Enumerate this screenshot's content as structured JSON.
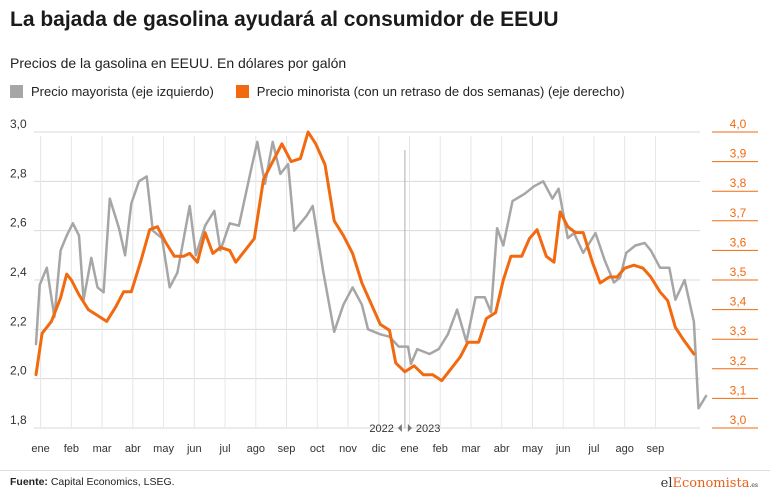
{
  "header": {
    "title": "La bajada de gasolina ayudará al consumidor de EEUU",
    "subtitle": "Precios de la gasolina en EEUU. En dólares por galón"
  },
  "legend": {
    "wholesale": "Precio mayorista (eje izquierdo)",
    "retail": "Precio minorista (con un retraso de dos semanas) (eje derecho)"
  },
  "colors": {
    "wholesale": "#a6a6a6",
    "retail": "#f26a10",
    "grid": "#d9d9d9"
  },
  "footer": {
    "source_label": "Fuente:",
    "source_text": "Capital Economics, LSEG.",
    "logo_pre": "el",
    "logo_hl": "Economista",
    "logo_tld": ".es"
  },
  "chart_data": {
    "type": "line",
    "x_unit": "months since start of 2022",
    "xlim": [
      0,
      21.6
    ],
    "x_ticks": [
      {
        "x": 0.15,
        "label": "ene"
      },
      {
        "x": 1.15,
        "label": "feb"
      },
      {
        "x": 2.15,
        "label": "mar"
      },
      {
        "x": 3.15,
        "label": "abr"
      },
      {
        "x": 4.15,
        "label": "may"
      },
      {
        "x": 5.15,
        "label": "jun"
      },
      {
        "x": 6.15,
        "label": "jul"
      },
      {
        "x": 7.15,
        "label": "ago"
      },
      {
        "x": 8.15,
        "label": "sep"
      },
      {
        "x": 9.15,
        "label": "oct"
      },
      {
        "x": 10.15,
        "label": "nov"
      },
      {
        "x": 11.15,
        "label": "dic"
      },
      {
        "x": 12.15,
        "label": "ene"
      },
      {
        "x": 13.15,
        "label": "feb"
      },
      {
        "x": 14.15,
        "label": "mar"
      },
      {
        "x": 15.15,
        "label": "abr"
      },
      {
        "x": 16.15,
        "label": "may"
      },
      {
        "x": 17.15,
        "label": "jun"
      },
      {
        "x": 18.15,
        "label": "jul"
      },
      {
        "x": 19.15,
        "label": "ago"
      },
      {
        "x": 20.15,
        "label": "sep"
      }
    ],
    "year_divider": {
      "x": 12.0,
      "left_label": "2022",
      "right_label": "2023"
    },
    "y_left": {
      "min": 1.8,
      "max": 3.0,
      "ticks": [
        "1,8",
        "2,0",
        "2,2",
        "2,4",
        "2,6",
        "2,8",
        "3,0"
      ]
    },
    "y_right": {
      "min": 3.0,
      "max": 4.0,
      "ticks": [
        "3,0",
        "3,1",
        "3,2",
        "3,3",
        "3,4",
        "3,5",
        "3,6",
        "3,7",
        "3,8",
        "3,9",
        "4,0"
      ]
    },
    "grid": true,
    "series": [
      {
        "name": "Precio mayorista (eje izquierdo)",
        "axis": "left",
        "points": [
          [
            0.0,
            2.14
          ],
          [
            0.12,
            2.38
          ],
          [
            0.35,
            2.45
          ],
          [
            0.6,
            2.25
          ],
          [
            0.8,
            2.52
          ],
          [
            1.0,
            2.58
          ],
          [
            1.2,
            2.63
          ],
          [
            1.4,
            2.58
          ],
          [
            1.55,
            2.32
          ],
          [
            1.8,
            2.49
          ],
          [
            2.0,
            2.37
          ],
          [
            2.2,
            2.35
          ],
          [
            2.4,
            2.73
          ],
          [
            2.7,
            2.61
          ],
          [
            2.9,
            2.5
          ],
          [
            3.1,
            2.71
          ],
          [
            3.35,
            2.8
          ],
          [
            3.6,
            2.82
          ],
          [
            3.8,
            2.6
          ],
          [
            4.1,
            2.57
          ],
          [
            4.35,
            2.37
          ],
          [
            4.6,
            2.43
          ],
          [
            5.0,
            2.7
          ],
          [
            5.2,
            2.5
          ],
          [
            5.5,
            2.62
          ],
          [
            5.8,
            2.68
          ],
          [
            6.0,
            2.52
          ],
          [
            6.3,
            2.63
          ],
          [
            6.6,
            2.62
          ],
          [
            7.0,
            2.85
          ],
          [
            7.2,
            2.96
          ],
          [
            7.45,
            2.79
          ],
          [
            7.7,
            2.96
          ],
          [
            7.95,
            2.83
          ],
          [
            8.2,
            2.87
          ],
          [
            8.4,
            2.6
          ],
          [
            8.8,
            2.66
          ],
          [
            9.0,
            2.7
          ],
          [
            9.35,
            2.43
          ],
          [
            9.7,
            2.19
          ],
          [
            10.0,
            2.3
          ],
          [
            10.3,
            2.37
          ],
          [
            10.6,
            2.3
          ],
          [
            10.8,
            2.2
          ],
          [
            11.2,
            2.18
          ],
          [
            11.5,
            2.17
          ],
          [
            11.8,
            2.13
          ],
          [
            12.1,
            2.13
          ],
          [
            12.2,
            2.06
          ],
          [
            12.4,
            2.12
          ],
          [
            12.8,
            2.1
          ],
          [
            13.1,
            2.12
          ],
          [
            13.4,
            2.18
          ],
          [
            13.7,
            2.28
          ],
          [
            14.0,
            2.15
          ],
          [
            14.3,
            2.33
          ],
          [
            14.6,
            2.33
          ],
          [
            14.8,
            2.27
          ],
          [
            15.0,
            2.61
          ],
          [
            15.2,
            2.54
          ],
          [
            15.5,
            2.72
          ],
          [
            15.9,
            2.75
          ],
          [
            16.2,
            2.78
          ],
          [
            16.5,
            2.8
          ],
          [
            16.8,
            2.73
          ],
          [
            17.0,
            2.77
          ],
          [
            17.3,
            2.57
          ],
          [
            17.5,
            2.59
          ],
          [
            17.8,
            2.51
          ],
          [
            18.2,
            2.59
          ],
          [
            18.5,
            2.48
          ],
          [
            18.8,
            2.39
          ],
          [
            19.0,
            2.41
          ],
          [
            19.2,
            2.51
          ],
          [
            19.5,
            2.54
          ],
          [
            19.8,
            2.55
          ],
          [
            20.0,
            2.52
          ],
          [
            20.3,
            2.45
          ],
          [
            20.6,
            2.45
          ],
          [
            20.8,
            2.32
          ],
          [
            21.1,
            2.4
          ],
          [
            21.4,
            2.23
          ],
          [
            21.55,
            1.88
          ],
          [
            21.8,
            1.93
          ]
        ]
      },
      {
        "name": "Precio minorista (con un retraso de dos semanas) (eje derecho)",
        "axis": "right",
        "points": [
          [
            0.0,
            3.18
          ],
          [
            0.2,
            3.32
          ],
          [
            0.5,
            3.36
          ],
          [
            0.8,
            3.44
          ],
          [
            1.0,
            3.52
          ],
          [
            1.15,
            3.5
          ],
          [
            1.4,
            3.45
          ],
          [
            1.7,
            3.4
          ],
          [
            2.0,
            3.38
          ],
          [
            2.3,
            3.36
          ],
          [
            2.6,
            3.41
          ],
          [
            2.85,
            3.46
          ],
          [
            3.1,
            3.46
          ],
          [
            3.4,
            3.56
          ],
          [
            3.7,
            3.67
          ],
          [
            3.95,
            3.68
          ],
          [
            4.2,
            3.63
          ],
          [
            4.5,
            3.58
          ],
          [
            4.8,
            3.58
          ],
          [
            5.0,
            3.59
          ],
          [
            5.25,
            3.56
          ],
          [
            5.5,
            3.66
          ],
          [
            5.75,
            3.59
          ],
          [
            6.0,
            3.61
          ],
          [
            6.3,
            3.6
          ],
          [
            6.5,
            3.56
          ],
          [
            6.8,
            3.6
          ],
          [
            7.1,
            3.64
          ],
          [
            7.4,
            3.84
          ],
          [
            7.8,
            3.92
          ],
          [
            8.0,
            3.96
          ],
          [
            8.3,
            3.9
          ],
          [
            8.6,
            3.91
          ],
          [
            8.85,
            4.0
          ],
          [
            9.1,
            3.96
          ],
          [
            9.4,
            3.89
          ],
          [
            9.7,
            3.7
          ],
          [
            10.0,
            3.65
          ],
          [
            10.3,
            3.59
          ],
          [
            10.6,
            3.49
          ],
          [
            10.9,
            3.42
          ],
          [
            11.2,
            3.35
          ],
          [
            11.5,
            3.33
          ],
          [
            11.7,
            3.22
          ],
          [
            12.0,
            3.19
          ],
          [
            12.3,
            3.21
          ],
          [
            12.6,
            3.18
          ],
          [
            12.9,
            3.18
          ],
          [
            13.2,
            3.16
          ],
          [
            13.5,
            3.2
          ],
          [
            13.8,
            3.24
          ],
          [
            14.05,
            3.29
          ],
          [
            14.4,
            3.29
          ],
          [
            14.65,
            3.37
          ],
          [
            14.95,
            3.39
          ],
          [
            15.2,
            3.5
          ],
          [
            15.45,
            3.58
          ],
          [
            15.8,
            3.58
          ],
          [
            16.05,
            3.64
          ],
          [
            16.3,
            3.67
          ],
          [
            16.6,
            3.58
          ],
          [
            16.85,
            3.56
          ],
          [
            17.05,
            3.73
          ],
          [
            17.3,
            3.68
          ],
          [
            17.55,
            3.66
          ],
          [
            17.8,
            3.66
          ],
          [
            18.1,
            3.56
          ],
          [
            18.35,
            3.49
          ],
          [
            18.65,
            3.51
          ],
          [
            18.9,
            3.51
          ],
          [
            19.15,
            3.54
          ],
          [
            19.45,
            3.55
          ],
          [
            19.75,
            3.54
          ],
          [
            20.0,
            3.51
          ],
          [
            20.3,
            3.46
          ],
          [
            20.55,
            3.43
          ],
          [
            20.8,
            3.34
          ],
          [
            21.05,
            3.3
          ],
          [
            21.4,
            3.25
          ]
        ]
      }
    ]
  }
}
